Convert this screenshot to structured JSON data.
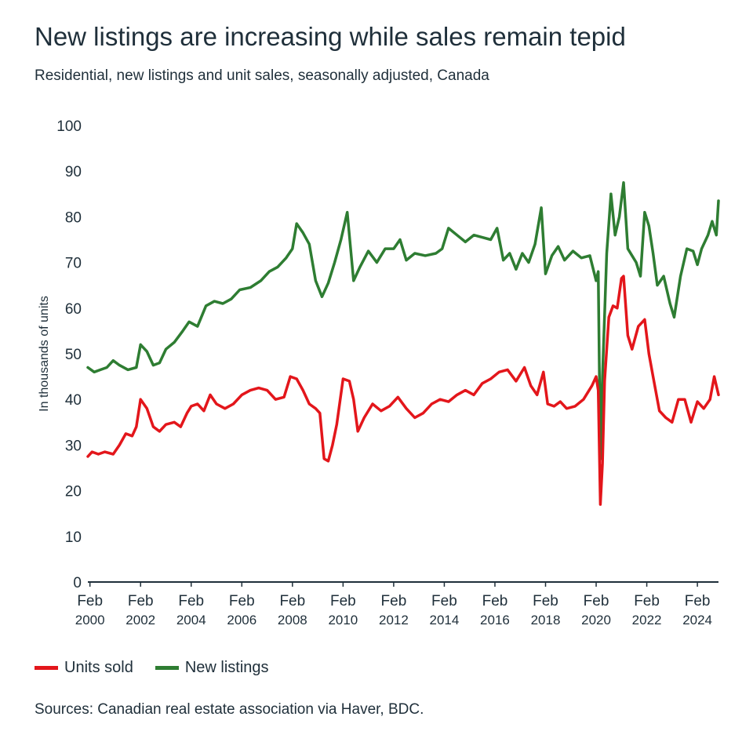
{
  "chart_data": {
    "type": "line",
    "title": "New listings are increasing while sales remain tepid",
    "subtitle": "Residential, new listings and unit sales, seasonally adjusted, Canada",
    "ylabel": "In thousands of units",
    "xlabel": "",
    "ylim": [
      0,
      100
    ],
    "yticks": [
      0,
      10,
      20,
      30,
      40,
      50,
      60,
      70,
      80,
      90,
      100
    ],
    "xlim": [
      "2000-01",
      "2024-12"
    ],
    "xticks": [
      {
        "x": "2000-02",
        "line1": "Feb",
        "line2": "2000"
      },
      {
        "x": "2002-02",
        "line1": "Feb",
        "line2": "2002"
      },
      {
        "x": "2004-02",
        "line1": "Feb",
        "line2": "2004"
      },
      {
        "x": "2006-02",
        "line1": "Feb",
        "line2": "2006"
      },
      {
        "x": "2008-02",
        "line1": "Feb",
        "line2": "2008"
      },
      {
        "x": "2010-02",
        "line1": "Feb",
        "line2": "2010"
      },
      {
        "x": "2012-02",
        "line1": "Feb",
        "line2": "2012"
      },
      {
        "x": "2014-02",
        "line1": "Feb",
        "line2": "2014"
      },
      {
        "x": "2016-02",
        "line1": "Feb",
        "line2": "2016"
      },
      {
        "x": "2018-02",
        "line1": "Feb",
        "line2": "2018"
      },
      {
        "x": "2020-02",
        "line1": "Feb",
        "line2": "2020"
      },
      {
        "x": "2022-02",
        "line1": "Feb",
        "line2": "2022"
      },
      {
        "x": "2024-02",
        "line1": "Feb",
        "line2": "2024"
      }
    ],
    "grid": false,
    "legend_position": "bottom-left",
    "series": [
      {
        "name": "Units sold",
        "color": "#e3161b",
        "points": [
          [
            "2000-01",
            27.5
          ],
          [
            "2000-03",
            28.5
          ],
          [
            "2000-06",
            28.0
          ],
          [
            "2000-09",
            28.5
          ],
          [
            "2001-01",
            28.0
          ],
          [
            "2001-04",
            30.0
          ],
          [
            "2001-07",
            32.5
          ],
          [
            "2001-10",
            32.0
          ],
          [
            "2001-12",
            34.0
          ],
          [
            "2002-02",
            40.0
          ],
          [
            "2002-05",
            38.0
          ],
          [
            "2002-08",
            34.0
          ],
          [
            "2002-11",
            33.0
          ],
          [
            "2003-02",
            34.5
          ],
          [
            "2003-06",
            35.0
          ],
          [
            "2003-09",
            34.0
          ],
          [
            "2003-12",
            37.0
          ],
          [
            "2004-02",
            38.5
          ],
          [
            "2004-05",
            39.0
          ],
          [
            "2004-08",
            37.5
          ],
          [
            "2004-11",
            41.0
          ],
          [
            "2005-02",
            39.0
          ],
          [
            "2005-06",
            38.0
          ],
          [
            "2005-10",
            39.0
          ],
          [
            "2006-02",
            41.0
          ],
          [
            "2006-06",
            42.0
          ],
          [
            "2006-10",
            42.5
          ],
          [
            "2007-02",
            42.0
          ],
          [
            "2007-06",
            40.0
          ],
          [
            "2007-10",
            40.5
          ],
          [
            "2008-01",
            45.0
          ],
          [
            "2008-04",
            44.5
          ],
          [
            "2008-07",
            42.0
          ],
          [
            "2008-10",
            39.0
          ],
          [
            "2009-01",
            38.0
          ],
          [
            "2009-03",
            37.0
          ],
          [
            "2009-05",
            27.0
          ],
          [
            "2009-07",
            26.5
          ],
          [
            "2009-09",
            30.0
          ],
          [
            "2009-11",
            34.5
          ],
          [
            "2010-02",
            44.5
          ],
          [
            "2010-05",
            44.0
          ],
          [
            "2010-07",
            40.0
          ],
          [
            "2010-09",
            33.0
          ],
          [
            "2010-12",
            36.0
          ],
          [
            "2011-04",
            39.0
          ],
          [
            "2011-08",
            37.5
          ],
          [
            "2011-12",
            38.5
          ],
          [
            "2012-04",
            40.5
          ],
          [
            "2012-08",
            38.0
          ],
          [
            "2012-12",
            36.0
          ],
          [
            "2013-04",
            37.0
          ],
          [
            "2013-08",
            39.0
          ],
          [
            "2013-12",
            40.0
          ],
          [
            "2014-04",
            39.5
          ],
          [
            "2014-08",
            41.0
          ],
          [
            "2014-12",
            42.0
          ],
          [
            "2015-04",
            41.0
          ],
          [
            "2015-08",
            43.5
          ],
          [
            "2015-12",
            44.5
          ],
          [
            "2016-04",
            46.0
          ],
          [
            "2016-08",
            46.5
          ],
          [
            "2016-12",
            44.0
          ],
          [
            "2017-04",
            47.0
          ],
          [
            "2017-07",
            43.0
          ],
          [
            "2017-10",
            41.0
          ],
          [
            "2018-01",
            46.0
          ],
          [
            "2018-03",
            39.0
          ],
          [
            "2018-06",
            38.5
          ],
          [
            "2018-09",
            39.5
          ],
          [
            "2018-12",
            38.0
          ],
          [
            "2019-04",
            38.5
          ],
          [
            "2019-08",
            40.0
          ],
          [
            "2019-12",
            43.0
          ],
          [
            "2020-02",
            45.0
          ],
          [
            "2020-03",
            42.0
          ],
          [
            "2020-04",
            17.0
          ],
          [
            "2020-05",
            26.0
          ],
          [
            "2020-06",
            44.0
          ],
          [
            "2020-08",
            58.0
          ],
          [
            "2020-10",
            60.5
          ],
          [
            "2020-12",
            60.0
          ],
          [
            "2021-02",
            66.5
          ],
          [
            "2021-03",
            67.0
          ],
          [
            "2021-05",
            54.0
          ],
          [
            "2021-07",
            51.0
          ],
          [
            "2021-10",
            56.0
          ],
          [
            "2022-01",
            57.5
          ],
          [
            "2022-03",
            50.0
          ],
          [
            "2022-05",
            45.0
          ],
          [
            "2022-08",
            37.5
          ],
          [
            "2022-11",
            36.0
          ],
          [
            "2023-02",
            35.0
          ],
          [
            "2023-05",
            40.0
          ],
          [
            "2023-08",
            40.0
          ],
          [
            "2023-11",
            35.0
          ],
          [
            "2024-02",
            39.5
          ],
          [
            "2024-05",
            38.0
          ],
          [
            "2024-08",
            40.0
          ],
          [
            "2024-10",
            45.0
          ],
          [
            "2024-12",
            41.0
          ]
        ]
      },
      {
        "name": "New listings",
        "color": "#2e7d32",
        "points": [
          [
            "2000-01",
            47.0
          ],
          [
            "2000-04",
            46.0
          ],
          [
            "2000-07",
            46.5
          ],
          [
            "2000-10",
            47.0
          ],
          [
            "2001-01",
            48.5
          ],
          [
            "2001-04",
            47.5
          ],
          [
            "2001-08",
            46.5
          ],
          [
            "2001-12",
            47.0
          ],
          [
            "2002-02",
            52.0
          ],
          [
            "2002-05",
            50.5
          ],
          [
            "2002-08",
            47.5
          ],
          [
            "2002-11",
            48.0
          ],
          [
            "2003-02",
            51.0
          ],
          [
            "2003-06",
            52.5
          ],
          [
            "2003-10",
            55.0
          ],
          [
            "2004-01",
            57.0
          ],
          [
            "2004-05",
            56.0
          ],
          [
            "2004-09",
            60.5
          ],
          [
            "2005-01",
            61.5
          ],
          [
            "2005-05",
            61.0
          ],
          [
            "2005-09",
            62.0
          ],
          [
            "2006-01",
            64.0
          ],
          [
            "2006-06",
            64.5
          ],
          [
            "2006-11",
            66.0
          ],
          [
            "2007-03",
            68.0
          ],
          [
            "2007-07",
            69.0
          ],
          [
            "2007-11",
            71.0
          ],
          [
            "2008-02",
            73.0
          ],
          [
            "2008-04",
            78.5
          ],
          [
            "2008-07",
            76.5
          ],
          [
            "2008-10",
            74.0
          ],
          [
            "2009-01",
            66.0
          ],
          [
            "2009-04",
            62.5
          ],
          [
            "2009-07",
            65.5
          ],
          [
            "2009-10",
            70.0
          ],
          [
            "2010-01",
            75.0
          ],
          [
            "2010-04",
            81.0
          ],
          [
            "2010-07",
            66.0
          ],
          [
            "2010-10",
            69.0
          ],
          [
            "2011-02",
            72.5
          ],
          [
            "2011-06",
            70.0
          ],
          [
            "2011-10",
            73.0
          ],
          [
            "2012-02",
            73.0
          ],
          [
            "2012-05",
            75.0
          ],
          [
            "2012-08",
            70.5
          ],
          [
            "2012-12",
            72.0
          ],
          [
            "2013-05",
            71.5
          ],
          [
            "2013-10",
            72.0
          ],
          [
            "2014-01",
            73.0
          ],
          [
            "2014-04",
            77.5
          ],
          [
            "2014-08",
            76.0
          ],
          [
            "2014-12",
            74.5
          ],
          [
            "2015-04",
            76.0
          ],
          [
            "2015-08",
            75.5
          ],
          [
            "2015-12",
            75.0
          ],
          [
            "2016-03",
            77.5
          ],
          [
            "2016-06",
            70.5
          ],
          [
            "2016-09",
            72.0
          ],
          [
            "2016-12",
            68.5
          ],
          [
            "2017-03",
            72.0
          ],
          [
            "2017-06",
            70.0
          ],
          [
            "2017-09",
            74.0
          ],
          [
            "2017-12",
            82.0
          ],
          [
            "2018-02",
            67.5
          ],
          [
            "2018-05",
            71.5
          ],
          [
            "2018-08",
            73.5
          ],
          [
            "2018-11",
            70.5
          ],
          [
            "2019-03",
            72.5
          ],
          [
            "2019-07",
            71.0
          ],
          [
            "2019-11",
            71.5
          ],
          [
            "2020-02",
            66.0
          ],
          [
            "2020-03",
            68.0
          ],
          [
            "2020-04",
            27.0
          ],
          [
            "2020-05",
            45.0
          ],
          [
            "2020-07",
            72.0
          ],
          [
            "2020-09",
            85.0
          ],
          [
            "2020-11",
            76.0
          ],
          [
            "2021-01",
            80.0
          ],
          [
            "2021-03",
            87.5
          ],
          [
            "2021-05",
            73.0
          ],
          [
            "2021-07",
            71.5
          ],
          [
            "2021-09",
            70.0
          ],
          [
            "2021-11",
            67.0
          ],
          [
            "2022-01",
            81.0
          ],
          [
            "2022-03",
            78.0
          ],
          [
            "2022-05",
            72.0
          ],
          [
            "2022-07",
            65.0
          ],
          [
            "2022-10",
            67.0
          ],
          [
            "2023-01",
            61.0
          ],
          [
            "2023-03",
            58.0
          ],
          [
            "2023-06",
            67.0
          ],
          [
            "2023-09",
            73.0
          ],
          [
            "2023-12",
            72.5
          ],
          [
            "2024-02",
            69.5
          ],
          [
            "2024-04",
            73.0
          ],
          [
            "2024-07",
            76.0
          ],
          [
            "2024-09",
            79.0
          ],
          [
            "2024-11",
            76.0
          ],
          [
            "2024-12",
            83.5
          ]
        ]
      }
    ]
  },
  "source_note": "Sources: Canadian real estate association via Haver, BDC."
}
